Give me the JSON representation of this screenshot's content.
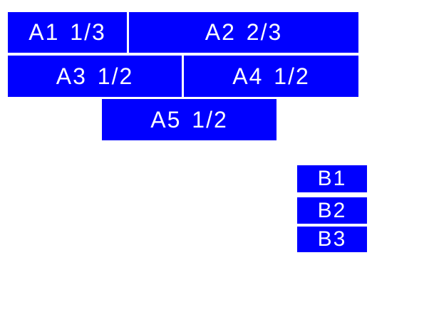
{
  "colors": {
    "box_fill": "#0000ff",
    "label_text": "#ffffff",
    "background": "#ffffff"
  },
  "group_a": {
    "a1": {
      "label": "A1 1/3"
    },
    "a2": {
      "label": "A2 2/3"
    },
    "a3": {
      "label": "A3 1/2"
    },
    "a4": {
      "label": "A4 1/2"
    },
    "a5": {
      "label": "A5 1/2"
    }
  },
  "group_b": {
    "b1": {
      "label": "B1"
    },
    "b2": {
      "label": "B2"
    },
    "b3": {
      "label": "B3"
    }
  }
}
